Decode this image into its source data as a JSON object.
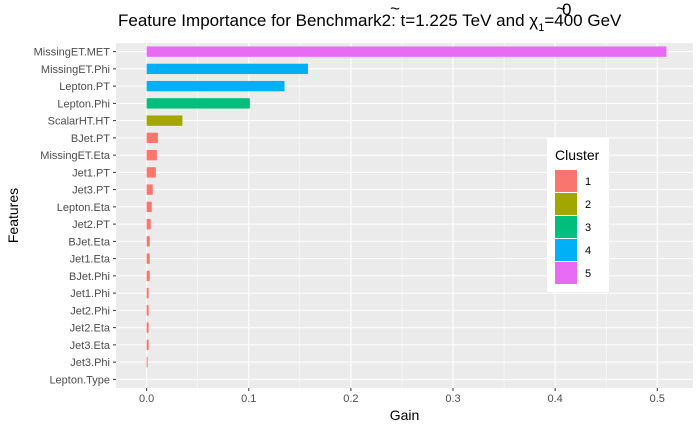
{
  "chart_data": {
    "type": "bar",
    "orientation": "horizontal",
    "title_parts": {
      "prefix": "Feature Importance for Benchmark2: ",
      "top_mass": "t",
      "top_value": "=1.225 TeV and ",
      "chi": "χ",
      "chi_sup": "0",
      "chi_sub": "1",
      "chi_value": "=400 GeV"
    },
    "xlabel": "Gain",
    "ylabel": "Features",
    "xlim": [
      -0.03,
      0.535
    ],
    "xticks": [
      0.0,
      0.1,
      0.2,
      0.3,
      0.4,
      0.5
    ],
    "xtick_labels": [
      "0.0",
      "0.1",
      "0.2",
      "0.3",
      "0.4",
      "0.5"
    ],
    "grid": true,
    "legend": {
      "title": "Cluster",
      "placement": "right",
      "entries": [
        {
          "label": "1",
          "color": "#F8766D"
        },
        {
          "label": "2",
          "color": "#A3A500"
        },
        {
          "label": "3",
          "color": "#00BF7D"
        },
        {
          "label": "4",
          "color": "#00B0F6"
        },
        {
          "label": "5",
          "color": "#E76BF3"
        }
      ]
    },
    "bars": [
      {
        "feature": "MissingET.MET",
        "gain": 0.509,
        "cluster": 5
      },
      {
        "feature": "MissingET.Phi",
        "gain": 0.158,
        "cluster": 4
      },
      {
        "feature": "Lepton.PT",
        "gain": 0.135,
        "cluster": 4
      },
      {
        "feature": "Lepton.Phi",
        "gain": 0.101,
        "cluster": 3
      },
      {
        "feature": "ScalarHT.HT",
        "gain": 0.035,
        "cluster": 2
      },
      {
        "feature": "BJet.PT",
        "gain": 0.011,
        "cluster": 1
      },
      {
        "feature": "MissingET.Eta",
        "gain": 0.01,
        "cluster": 1
      },
      {
        "feature": "Jet1.PT",
        "gain": 0.009,
        "cluster": 1
      },
      {
        "feature": "Jet3.PT",
        "gain": 0.006,
        "cluster": 1
      },
      {
        "feature": "Lepton.Eta",
        "gain": 0.005,
        "cluster": 1
      },
      {
        "feature": "Jet2.PT",
        "gain": 0.004,
        "cluster": 1
      },
      {
        "feature": "BJet.Eta",
        "gain": 0.003,
        "cluster": 1
      },
      {
        "feature": "Jet1.Eta",
        "gain": 0.003,
        "cluster": 1
      },
      {
        "feature": "BJet.Phi",
        "gain": 0.003,
        "cluster": 1
      },
      {
        "feature": "Jet1.Phi",
        "gain": 0.002,
        "cluster": 1
      },
      {
        "feature": "Jet2.Phi",
        "gain": 0.002,
        "cluster": 1
      },
      {
        "feature": "Jet2.Eta",
        "gain": 0.002,
        "cluster": 1
      },
      {
        "feature": "Jet3.Eta",
        "gain": 0.002,
        "cluster": 1
      },
      {
        "feature": "Jet3.Phi",
        "gain": 0.001,
        "cluster": 1
      },
      {
        "feature": "Lepton.Type",
        "gain": 0.0,
        "cluster": 1
      }
    ]
  }
}
